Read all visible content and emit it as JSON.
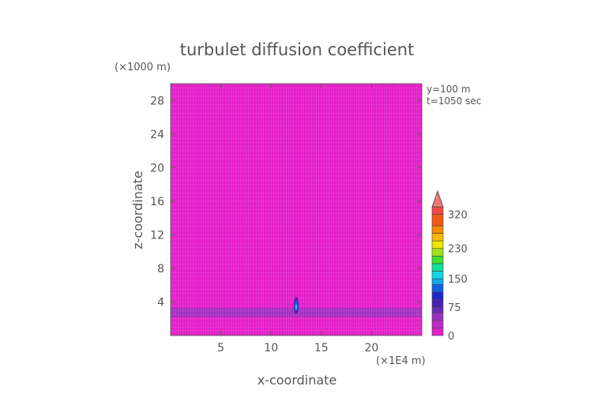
{
  "chart_data": {
    "type": "heatmap",
    "title": "turbulet diffusion coefficient",
    "xlabel": "x-coordinate",
    "ylabel": "z-coordinate",
    "x_unit": "(×1E4 m)",
    "y_unit": "(×1000 m)",
    "xlim": [
      0,
      25
    ],
    "ylim": [
      0,
      30
    ],
    "x_ticks": [
      5,
      10,
      15,
      20
    ],
    "y_ticks": [
      4,
      8,
      12,
      16,
      20,
      24,
      28
    ],
    "info": [
      "y=100 m",
      "t=1050 sec"
    ],
    "background_level": 0,
    "band": {
      "z_range": [
        2.2,
        3.3
      ],
      "level": 45
    },
    "plume": {
      "x_center": 12.5,
      "z_range": [
        2.6,
        4.6
      ],
      "peak_level": 150
    },
    "colorbar": {
      "labels": [
        {
          "value": 0,
          "text": "0"
        },
        {
          "value": 75,
          "text": "75"
        },
        {
          "value": 150,
          "text": "150"
        },
        {
          "value": 230,
          "text": "230"
        },
        {
          "value": 320,
          "text": "320"
        }
      ],
      "levels": [
        0,
        20,
        40,
        60,
        75,
        95,
        115,
        135,
        150,
        170,
        190,
        210,
        230,
        250,
        270,
        290,
        320,
        340
      ],
      "colors": [
        "#e020c8",
        "#c028c8",
        "#9830c0",
        "#6a28b8",
        "#4820b0",
        "#1e28c8",
        "#1060e0",
        "#10a8f0",
        "#10d8e8",
        "#10e098",
        "#40e030",
        "#a0e018",
        "#f0e800",
        "#f8b800",
        "#f88800",
        "#f05818",
        "#f04848"
      ],
      "extend_color": "#f07878"
    },
    "colors": {
      "background": "#e41cc8",
      "band": "#9a2cbe",
      "grid": "#ffffff"
    }
  }
}
